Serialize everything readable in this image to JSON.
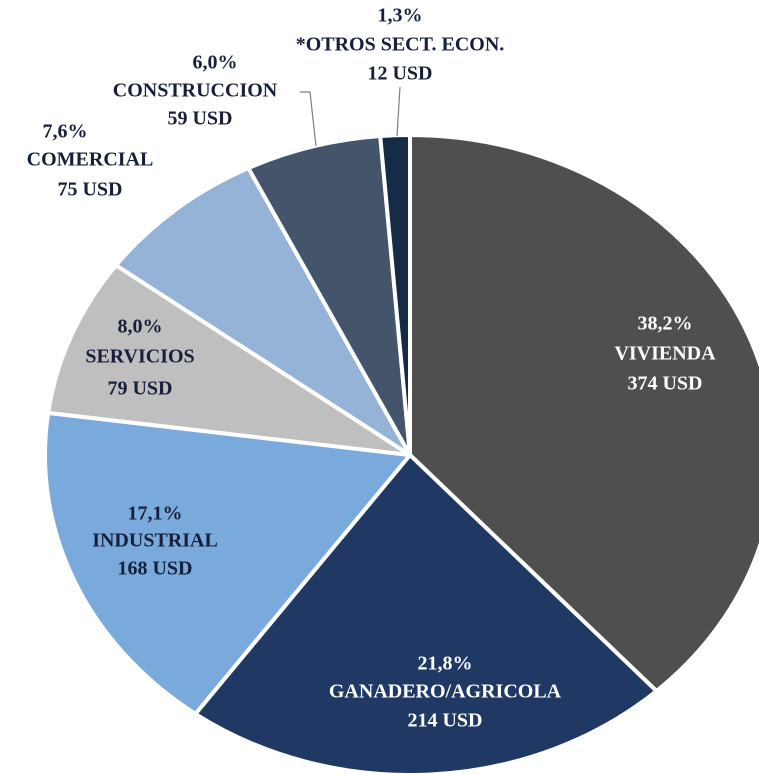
{
  "chart_data": {
    "type": "pie",
    "categories": [
      "VIVIENDA",
      "GANADERO/AGRICOLA",
      "INDUSTRIAL",
      "SERVICIOS",
      "COMERCIAL",
      "CONSTRUCCION",
      "*OTROS SECT. ECON."
    ],
    "values": [
      38.2,
      21.8,
      17.1,
      8.0,
      7.6,
      6.0,
      1.3
    ],
    "value_labels": [
      "38,2%",
      "21,8%",
      "17,1%",
      "8,0%",
      "7,6%",
      "6,0%",
      "1,3%"
    ],
    "amounts": [
      374,
      214,
      168,
      79,
      75,
      59,
      12
    ],
    "amount_labels": [
      "374 USD",
      "214 USD",
      "168 USD",
      "79 USD",
      "75 USD",
      "59 USD",
      "12 USD"
    ],
    "colors": [
      "#4f4f4f",
      "#1f3864",
      "#7aaadc",
      "#bfbfbf",
      "#95b3d7",
      "#44546a",
      "#162c46"
    ]
  }
}
